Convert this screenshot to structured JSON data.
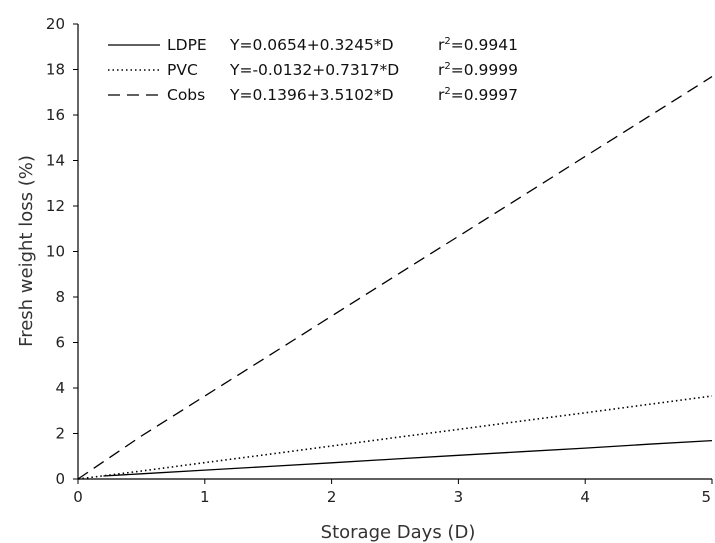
{
  "chart_data": {
    "type": "line",
    "title": "",
    "xlabel": "Storage Days (D)",
    "ylabel": "Fresh weight loss (%)",
    "xlim": [
      0,
      5
    ],
    "ylim": [
      0,
      20
    ],
    "xticks": [
      "0",
      "1",
      "2",
      "3",
      "4",
      "5"
    ],
    "yticks": [
      "0",
      "2",
      "4",
      "6",
      "8",
      "10",
      "12",
      "14",
      "16",
      "18",
      "20"
    ],
    "grid": false,
    "legend_position": "top-left",
    "series": [
      {
        "name": "LDPE",
        "equation": "Y=0.0654+0.3245*D",
        "r2_prefix": "r",
        "r2_sup": "2",
        "r2_value": "=0.9941",
        "style": "solid",
        "color": "#000000",
        "x": [
          0.2,
          0.5,
          1,
          1.5,
          2,
          2.5,
          3,
          3.5,
          4,
          4.5,
          5
        ],
        "y": [
          0.13,
          0.23,
          0.39,
          0.55,
          0.71,
          0.88,
          1.04,
          1.2,
          1.36,
          1.53,
          1.69
        ]
      },
      {
        "name": "PVC",
        "equation": "Y=-0.0132+0.7317*D",
        "r2_prefix": "r",
        "r2_sup": "2",
        "r2_value": "=0.9999",
        "style": "dotted",
        "color": "#000000",
        "x": [
          0,
          0.5,
          1,
          1.5,
          2,
          2.5,
          3,
          3.5,
          4,
          4.5,
          5
        ],
        "y": [
          0,
          0.35,
          0.72,
          1.08,
          1.45,
          1.82,
          2.18,
          2.55,
          2.91,
          3.28,
          3.65
        ]
      },
      {
        "name": "Cobs",
        "equation": "Y=0.1396+3.5102*D",
        "r2_prefix": "r",
        "r2_sup": "2",
        "r2_value": "=0.9997",
        "style": "dashed",
        "color": "#000000",
        "x": [
          0,
          0.5,
          1,
          1.5,
          2,
          2.5,
          3,
          3.5,
          4,
          4.5,
          5
        ],
        "y": [
          0,
          1.89,
          3.65,
          5.4,
          7.16,
          8.92,
          10.67,
          12.42,
          14.18,
          15.93,
          17.69
        ]
      }
    ]
  }
}
